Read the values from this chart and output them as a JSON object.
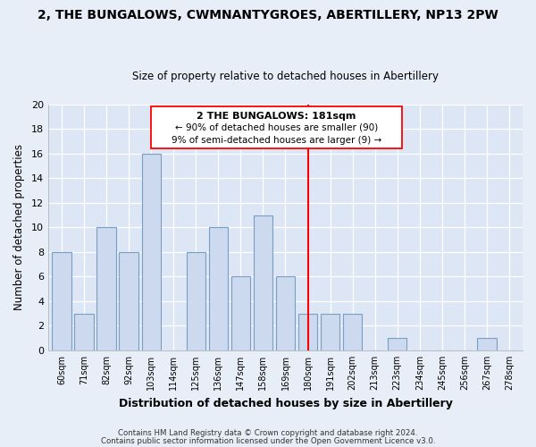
{
  "title": "2, THE BUNGALOWS, CWMNANTYGROES, ABERTILLERY, NP13 2PW",
  "subtitle": "Size of property relative to detached houses in Abertillery",
  "xlabel": "Distribution of detached houses by size in Abertillery",
  "ylabel": "Number of detached properties",
  "bar_labels": [
    "60sqm",
    "71sqm",
    "82sqm",
    "92sqm",
    "103sqm",
    "114sqm",
    "125sqm",
    "136sqm",
    "147sqm",
    "158sqm",
    "169sqm",
    "180sqm",
    "191sqm",
    "202sqm",
    "213sqm",
    "223sqm",
    "234sqm",
    "245sqm",
    "256sqm",
    "267sqm",
    "278sqm"
  ],
  "bar_values": [
    8,
    3,
    10,
    8,
    16,
    0,
    8,
    10,
    6,
    11,
    6,
    3,
    3,
    3,
    0,
    1,
    0,
    0,
    0,
    1,
    0
  ],
  "bar_color": "#ccd9ee",
  "bar_edge_color": "#7a9fc2",
  "annotation_title": "2 THE BUNGALOWS: 181sqm",
  "annotation_line1": "← 90% of detached houses are smaller (90)",
  "annotation_line2": "9% of semi-detached houses are larger (9) →",
  "marker_label": "180sqm",
  "ylim": [
    0,
    20
  ],
  "yticks": [
    0,
    2,
    4,
    6,
    8,
    10,
    12,
    14,
    16,
    18,
    20
  ],
  "plot_bg_color": "#dde6f5",
  "fig_bg_color": "#e8eef8",
  "grid_color": "#ffffff",
  "footer1": "Contains HM Land Registry data © Crown copyright and database right 2024.",
  "footer2": "Contains public sector information licensed under the Open Government Licence v3.0."
}
